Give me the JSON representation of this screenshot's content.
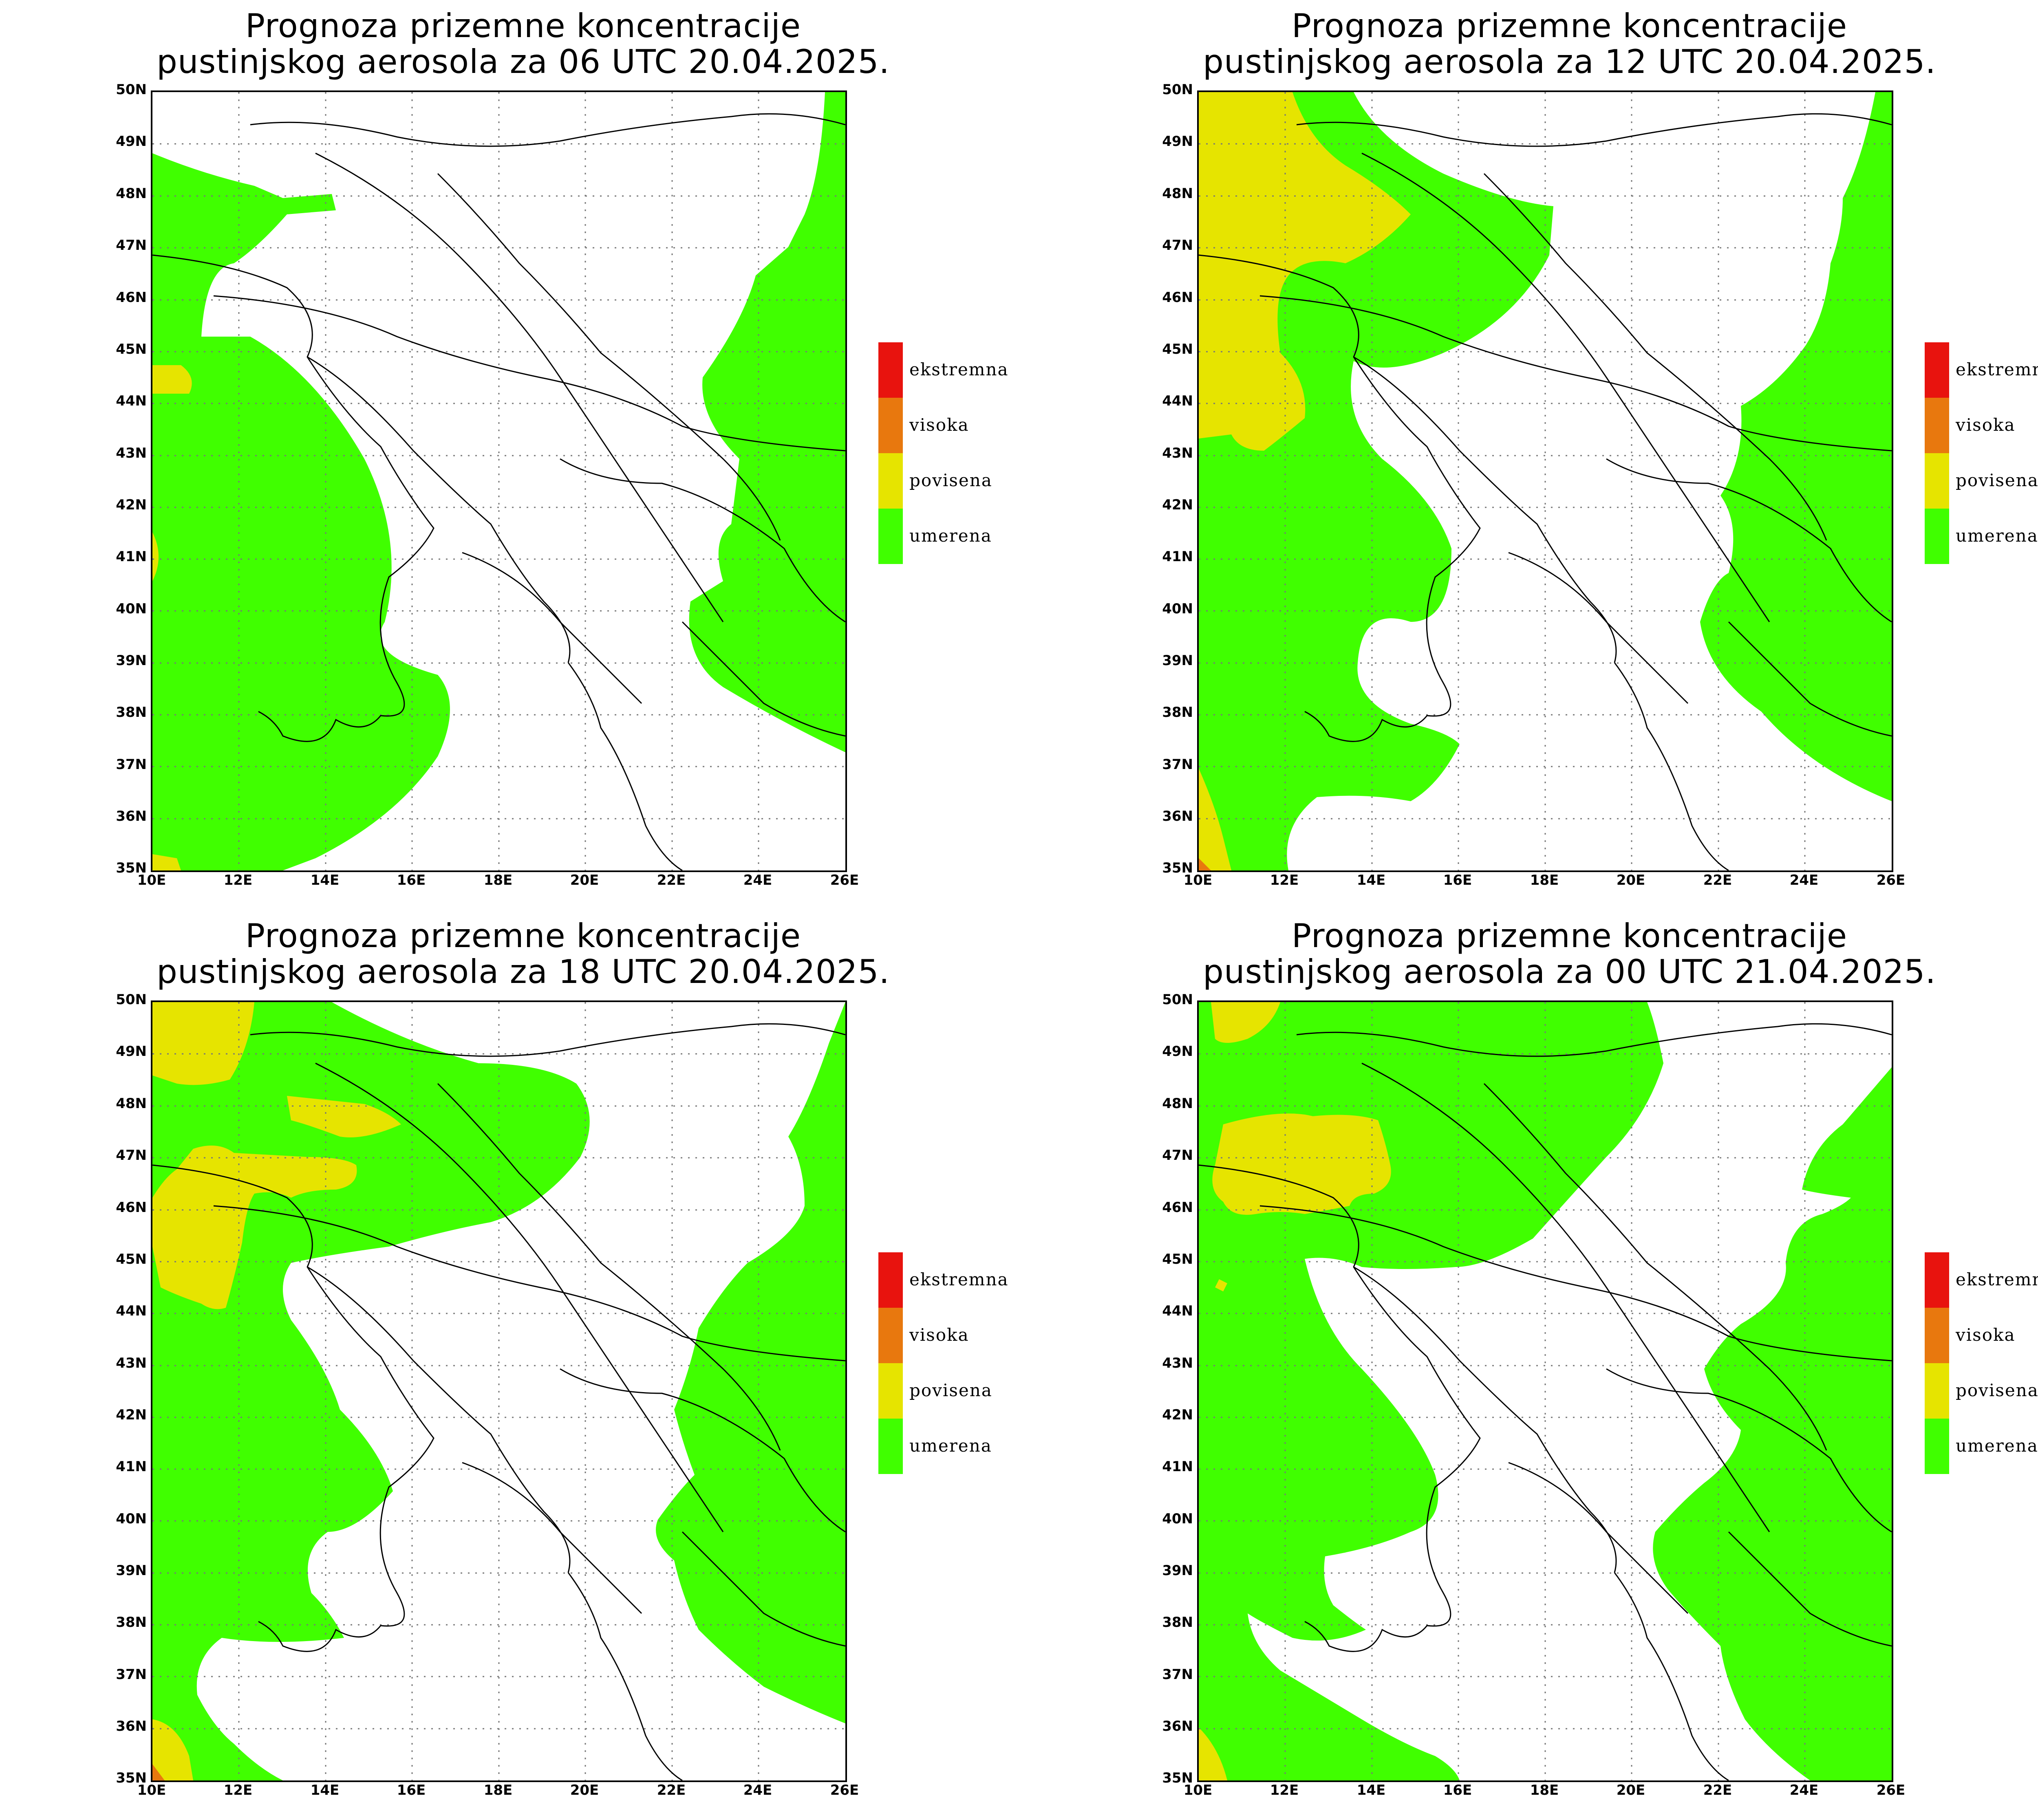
{
  "legend": [
    {
      "label": "ekstremna",
      "color": "#e8130e"
    },
    {
      "label": "visoka",
      "color": "#e8780e"
    },
    {
      "label": "povisena",
      "color": "#e6e400"
    },
    {
      "label": "umerena",
      "color": "#40ff00"
    }
  ],
  "lat_labels": [
    "50N",
    "49N",
    "48N",
    "47N",
    "46N",
    "45N",
    "44N",
    "43N",
    "42N",
    "41N",
    "40N",
    "39N",
    "38N",
    "37N",
    "36N",
    "35N"
  ],
  "lon_labels": [
    "10E",
    "12E",
    "14E",
    "16E",
    "18E",
    "20E",
    "22E",
    "24E",
    "26E"
  ],
  "panels": [
    {
      "title_line1": "Prognoza prizemne koncentracije",
      "title_line2": "pustinjskog aerosola za 06 UTC 20.04.2025."
    },
    {
      "title_line1": "Prognoza prizemne koncentracije",
      "title_line2": "pustinjskog aerosola za 12 UTC 20.04.2025."
    },
    {
      "title_line1": "Prognoza prizemne koncentracije",
      "title_line2": "pustinjskog aerosola za 18 UTC 20.04.2025."
    },
    {
      "title_line1": "Prognoza prizemne koncentracije",
      "title_line2": "pustinjskog aerosola za 00 UTC 21.04.2025."
    }
  ]
}
